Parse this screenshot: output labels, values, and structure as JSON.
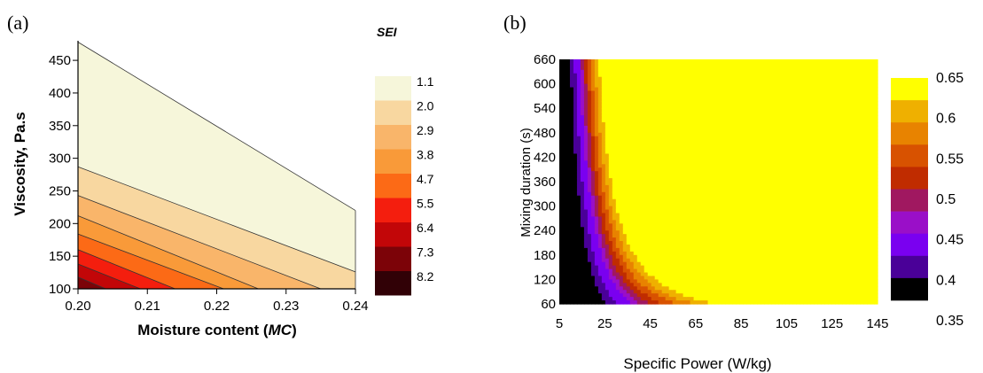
{
  "chart_data": [
    {
      "type": "contour",
      "panel_label": "(a)",
      "title": "",
      "xlabel_main": "Moisture content (",
      "xlabel_var": "MC",
      "xlabel_tail": ")",
      "ylabel": "Viscosity, Pa.s",
      "xlim": [
        0.2,
        0.24
      ],
      "ylim": [
        100,
        480
      ],
      "x_ticks": [
        "0.20",
        "0.21",
        "0.22",
        "0.23",
        "0.24"
      ],
      "y_ticks": [
        "100",
        "150",
        "200",
        "250",
        "300",
        "350",
        "400",
        "450"
      ],
      "legend_title": "SEI",
      "legend_levels": [
        "1.1",
        "2.0",
        "2.9",
        "3.8",
        "4.7",
        "5.5",
        "6.4",
        "7.3",
        "8.2"
      ],
      "legend_colors": [
        "#f6f6da",
        "#f8d7a0",
        "#f9b56a",
        "#f99a39",
        "#fc6a16",
        "#f41e0e",
        "#c20608",
        "#7c0308",
        "#310106"
      ],
      "contour_lines": [
        {
          "y_at_x0_20": 478,
          "y_at_x0_24": 220
        },
        {
          "y_at_x0_20": 287,
          "y_at_x0_24": 126
        },
        {
          "y_at_x0_20": 243,
          "y_at_x0_235": 100
        },
        {
          "y_at_x0_20": 212,
          "y_at_x0_226": 100
        },
        {
          "y_at_x0_20": 184,
          "y_at_x0_221": 100
        },
        {
          "y_at_x0_20": 160,
          "y_at_x0_214": 100
        },
        {
          "y_at_x0_20": 138,
          "y_at_x0_209": 100
        },
        {
          "y_at_x0_20": 118,
          "y_at_x0_204": 100
        }
      ]
    },
    {
      "type": "heatmap",
      "panel_label": "(b)",
      "title": "",
      "xlabel": "Specific Power (W/kg)",
      "ylabel": "Mixing duration (s)",
      "xlim": [
        5,
        145
      ],
      "ylim": [
        60,
        660
      ],
      "x_ticks": [
        "5",
        "25",
        "45",
        "65",
        "85",
        "105",
        "125",
        "145"
      ],
      "y_ticks": [
        "60",
        "120",
        "180",
        "240",
        "300",
        "360",
        "420",
        "480",
        "540",
        "600",
        "660"
      ],
      "legend_levels": [
        "0.65",
        "0.6",
        "0.55",
        "0.5",
        "0.45",
        "0.4",
        "0.35"
      ],
      "legend_colors": [
        "#ffff00",
        "#efb000",
        "#e88300",
        "#d85200",
        "#c02c00",
        "#a01860",
        "#9a0fc8",
        "#7a00f0",
        "#4a0098",
        "#000000"
      ],
      "level_bands": [
        0.35,
        0.4,
        0.45,
        0.475,
        0.5,
        0.525,
        0.55,
        0.575,
        0.6,
        0.625,
        0.65
      ]
    }
  ]
}
